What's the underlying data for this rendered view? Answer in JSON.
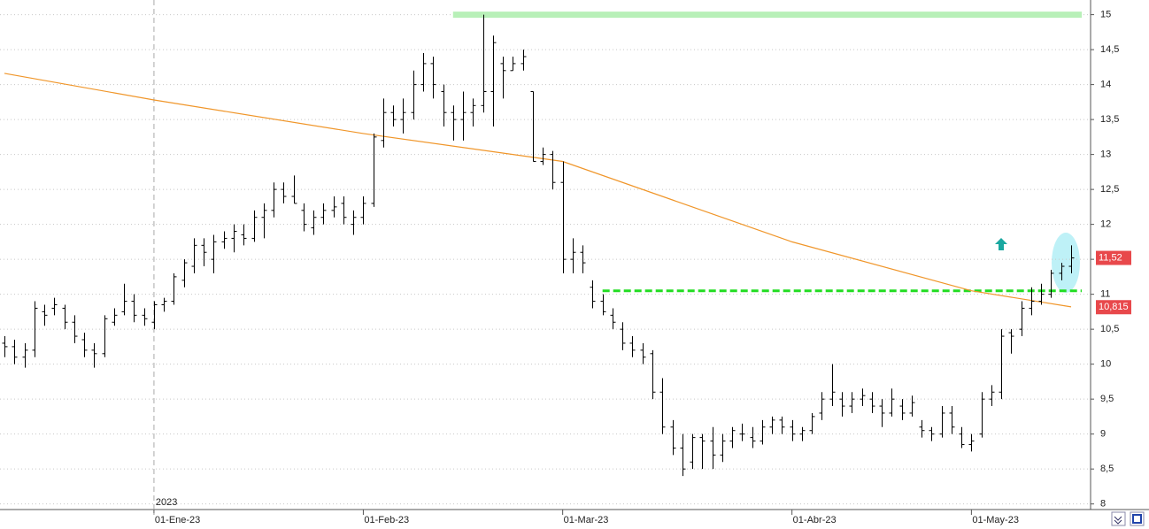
{
  "chart_data": {
    "type": "ohlc",
    "color": "#000000",
    "categories": [
      null,
      null,
      null,
      null,
      null,
      null,
      null,
      null,
      null,
      null,
      null,
      null,
      null,
      null,
      null,
      "01-Ene-23",
      null,
      null,
      null,
      null,
      null,
      null,
      null,
      null,
      null,
      null,
      null,
      null,
      null,
      null,
      null,
      null,
      null,
      null,
      null,
      null,
      "01-Feb-23",
      null,
      null,
      null,
      null,
      null,
      null,
      null,
      null,
      null,
      null,
      null,
      null,
      null,
      null,
      null,
      null,
      null,
      null,
      null,
      "01-Mar-23",
      null,
      null,
      null,
      null,
      null,
      null,
      null,
      null,
      null,
      null,
      null,
      null,
      null,
      null,
      null,
      null,
      null,
      null,
      null,
      null,
      null,
      null,
      "01-Abr-23",
      null,
      null,
      null,
      null,
      null,
      null,
      null,
      null,
      null,
      null,
      null,
      null,
      null,
      null,
      null,
      null,
      null,
      "01-May-23",
      null,
      null,
      null,
      null,
      null,
      null,
      null,
      null,
      null,
      null
    ],
    "year_label": {
      "at": 15,
      "label": "2023"
    },
    "ohlc": [
      [
        10.3,
        10.4,
        10.1,
        10.25
      ],
      [
        10.25,
        10.35,
        10.0,
        10.1
      ],
      [
        10.1,
        10.3,
        9.95,
        10.2
      ],
      [
        10.2,
        10.9,
        10.1,
        10.8
      ],
      [
        10.75,
        10.85,
        10.55,
        10.7
      ],
      [
        10.8,
        10.95,
        10.7,
        10.85
      ],
      [
        10.8,
        10.85,
        10.5,
        10.6
      ],
      [
        10.6,
        10.7,
        10.3,
        10.4
      ],
      [
        10.35,
        10.45,
        10.1,
        10.2
      ],
      [
        10.2,
        10.3,
        9.95,
        10.15
      ],
      [
        10.15,
        10.7,
        10.1,
        10.65
      ],
      [
        10.6,
        10.8,
        10.55,
        10.7
      ],
      [
        10.75,
        11.15,
        10.7,
        10.9
      ],
      [
        10.9,
        11.0,
        10.6,
        10.7
      ],
      [
        10.7,
        10.8,
        10.55,
        10.65
      ],
      [
        10.6,
        10.9,
        10.5,
        10.85
      ],
      [
        10.85,
        10.95,
        10.75,
        10.9
      ],
      [
        10.9,
        11.3,
        10.85,
        11.25
      ],
      [
        11.2,
        11.5,
        11.1,
        11.45
      ],
      [
        11.4,
        11.8,
        11.3,
        11.7
      ],
      [
        11.7,
        11.8,
        11.4,
        11.6
      ],
      [
        11.5,
        11.85,
        11.3,
        11.75
      ],
      [
        11.75,
        11.9,
        11.65,
        11.8
      ],
      [
        11.8,
        12.0,
        11.6,
        11.9
      ],
      [
        11.85,
        12.0,
        11.7,
        11.8
      ],
      [
        11.8,
        12.2,
        11.75,
        12.1
      ],
      [
        12.1,
        12.3,
        11.8,
        12.2
      ],
      [
        12.2,
        12.6,
        12.1,
        12.5
      ],
      [
        12.5,
        12.6,
        12.3,
        12.4
      ],
      [
        12.4,
        12.7,
        12.3,
        12.3
      ],
      [
        12.2,
        12.3,
        11.9,
        12.0
      ],
      [
        11.95,
        12.2,
        11.85,
        12.1
      ],
      [
        12.1,
        12.3,
        12.0,
        12.2
      ],
      [
        12.2,
        12.4,
        12.1,
        12.25
      ],
      [
        12.3,
        12.4,
        12.0,
        12.1
      ],
      [
        12.0,
        12.2,
        11.85,
        12.1
      ],
      [
        12.1,
        12.4,
        12.0,
        12.3
      ],
      [
        12.3,
        13.3,
        12.25,
        13.25
      ],
      [
        13.2,
        13.8,
        13.1,
        13.6
      ],
      [
        13.6,
        13.7,
        13.4,
        13.5
      ],
      [
        13.5,
        13.8,
        13.3,
        13.6
      ],
      [
        13.6,
        14.2,
        13.5,
        14.0
      ],
      [
        14.0,
        14.45,
        13.9,
        14.3
      ],
      [
        14.3,
        14.4,
        13.8,
        14.0
      ],
      [
        13.9,
        14.0,
        13.4,
        13.6
      ],
      [
        13.6,
        13.7,
        13.2,
        13.5
      ],
      [
        13.5,
        13.9,
        13.2,
        13.6
      ],
      [
        13.6,
        13.8,
        13.4,
        13.7
      ],
      [
        13.7,
        15.0,
        13.6,
        13.9
      ],
      [
        13.9,
        14.7,
        13.4,
        14.6
      ],
      [
        14.3,
        14.4,
        13.8,
        14.2
      ],
      [
        14.2,
        14.4,
        14.2,
        14.3
      ],
      [
        14.3,
        14.5,
        14.2,
        14.4
      ],
      [
        13.9,
        13.9,
        12.9,
        12.9
      ],
      [
        12.9,
        13.1,
        12.85,
        13.0
      ],
      [
        13.0,
        13.05,
        12.5,
        12.6
      ],
      [
        12.6,
        12.9,
        11.3,
        11.5
      ],
      [
        11.5,
        11.8,
        11.3,
        11.6
      ],
      [
        11.6,
        11.7,
        11.3,
        11.45
      ],
      [
        11.1,
        11.2,
        10.8,
        10.9
      ],
      [
        10.9,
        11.0,
        10.7,
        10.75
      ],
      [
        10.7,
        10.8,
        10.5,
        10.6
      ],
      [
        10.5,
        10.6,
        10.2,
        10.3
      ],
      [
        10.3,
        10.4,
        10.1,
        10.2
      ],
      [
        10.2,
        10.3,
        10.0,
        10.1
      ],
      [
        10.15,
        10.2,
        9.5,
        9.6
      ],
      [
        9.6,
        9.8,
        9.0,
        9.1
      ],
      [
        9.1,
        9.2,
        8.7,
        8.8
      ],
      [
        8.8,
        9.0,
        8.4,
        8.5
      ],
      [
        8.6,
        9.0,
        8.5,
        8.95
      ],
      [
        8.95,
        9.0,
        8.5,
        8.9
      ],
      [
        8.9,
        9.1,
        8.5,
        8.7
      ],
      [
        8.7,
        9.0,
        8.6,
        8.9
      ],
      [
        8.9,
        9.1,
        8.8,
        9.05
      ],
      [
        9.0,
        9.15,
        8.9,
        9.0
      ],
      [
        8.95,
        9.1,
        8.8,
        8.9
      ],
      [
        8.9,
        9.2,
        8.85,
        9.1
      ],
      [
        9.1,
        9.25,
        9.0,
        9.2
      ],
      [
        9.2,
        9.25,
        9.0,
        9.1
      ],
      [
        9.1,
        9.2,
        8.9,
        9.0
      ],
      [
        9.0,
        9.1,
        8.9,
        9.05
      ],
      [
        9.05,
        9.3,
        9.0,
        9.25
      ],
      [
        9.3,
        9.6,
        9.2,
        9.5
      ],
      [
        9.5,
        10.0,
        9.4,
        9.6
      ],
      [
        9.5,
        9.6,
        9.25,
        9.4
      ],
      [
        9.4,
        9.6,
        9.3,
        9.5
      ],
      [
        9.5,
        9.65,
        9.4,
        9.55
      ],
      [
        9.5,
        9.6,
        9.3,
        9.4
      ],
      [
        9.4,
        9.5,
        9.1,
        9.3
      ],
      [
        9.3,
        9.65,
        9.25,
        9.5
      ],
      [
        9.4,
        9.5,
        9.2,
        9.3
      ],
      [
        9.3,
        9.55,
        9.25,
        9.45
      ],
      [
        9.1,
        9.2,
        8.95,
        9.05
      ],
      [
        9.05,
        9.1,
        8.9,
        9.0
      ],
      [
        9.0,
        9.4,
        8.95,
        9.3
      ],
      [
        9.3,
        9.4,
        9.0,
        9.1
      ],
      [
        9.0,
        9.1,
        8.8,
        8.85
      ],
      [
        8.85,
        9.0,
        8.75,
        8.9
      ],
      [
        9.0,
        9.6,
        8.95,
        9.5
      ],
      [
        9.5,
        9.7,
        9.4,
        9.6
      ],
      [
        9.6,
        10.5,
        9.5,
        10.4
      ],
      [
        10.45,
        10.5,
        10.15,
        10.4
      ],
      [
        10.5,
        10.9,
        10.4,
        10.8
      ],
      [
        10.8,
        11.1,
        10.7,
        10.9
      ],
      [
        10.9,
        11.15,
        10.85,
        11.0
      ],
      [
        11.0,
        11.35,
        10.95,
        11.3
      ],
      [
        11.3,
        11.45,
        11.2,
        11.4
      ],
      [
        11.4,
        11.7,
        11.3,
        11.52
      ]
    ],
    "moving_average": {
      "color": "#f0962a",
      "at": [
        0,
        15,
        36,
        56,
        79,
        97,
        107
      ],
      "values": [
        14.16,
        13.78,
        13.3,
        12.9,
        11.75,
        11.05,
        10.82
      ]
    },
    "levels": [
      {
        "value": 15.0,
        "from": 45,
        "color": "#b8f0b8",
        "style": "solid"
      },
      {
        "value": 11.05,
        "from": 60,
        "color": "#22dd22",
        "style": "dashed"
      }
    ],
    "price_tags": [
      {
        "value": 11.52,
        "label": "11,52",
        "color": "#e8484b"
      },
      {
        "value": 10.815,
        "label": "10,815",
        "color": "#e8484b"
      }
    ],
    "ylim": [
      7.92,
      15.21
    ],
    "yticks": [
      8,
      {
        "value": 8.5,
        "label": "8,5"
      },
      9,
      {
        "value": 9.5,
        "label": "9,5"
      },
      10,
      {
        "value": 10.5,
        "label": "10,5"
      },
      11,
      {
        "value": 11.5,
        "label": "11,5"
      },
      12,
      {
        "value": 12.5,
        "label": "12,5"
      },
      13,
      {
        "value": 13.5,
        "label": "13,5"
      },
      14,
      {
        "value": 14.5,
        "label": "14,5"
      },
      15
    ],
    "grid": true
  }
}
